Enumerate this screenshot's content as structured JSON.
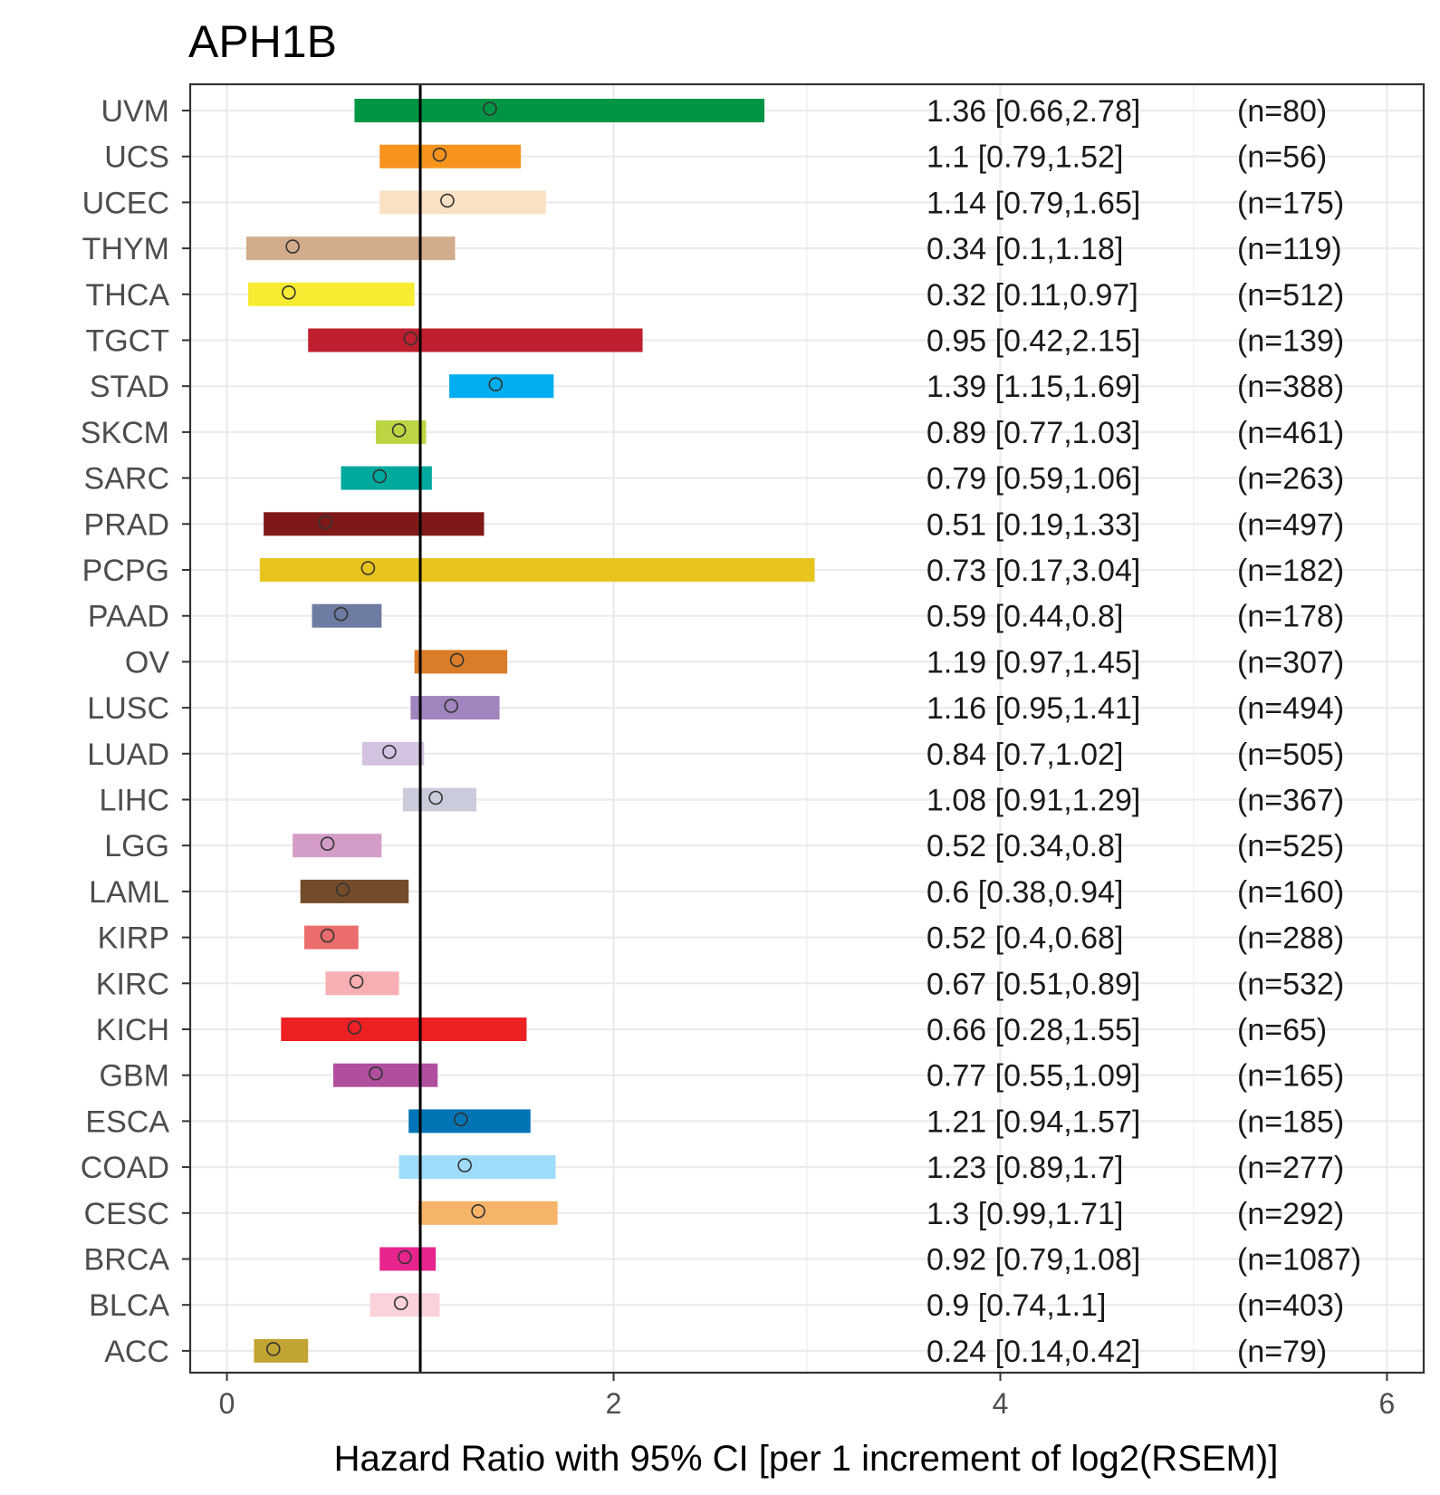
{
  "chart_data": {
    "type": "forest",
    "title": "APH1B",
    "xlabel": "Hazard Ratio with 95% CI [per 1 increment of log2(RSEM)]",
    "ylabel": "",
    "xlim": [
      -0.19,
      6.19
    ],
    "xticks": [
      0,
      2,
      4,
      6
    ],
    "reference_line": 1,
    "grid": true,
    "rows": [
      {
        "label": "UVM",
        "hr": 1.36,
        "lo": 0.66,
        "hi": 2.78,
        "text": "1.36 [0.66,2.78]",
        "n": "(n=80)",
        "color": "#009444"
      },
      {
        "label": "UCS",
        "hr": 1.1,
        "lo": 0.79,
        "hi": 1.52,
        "text": "1.1 [0.79,1.52]",
        "n": "(n=56)",
        "color": "#F7941D"
      },
      {
        "label": "UCEC",
        "hr": 1.14,
        "lo": 0.79,
        "hi": 1.65,
        "text": "1.14 [0.79,1.65]",
        "n": "(n=175)",
        "color": "#FAE1C4"
      },
      {
        "label": "THYM",
        "hr": 0.34,
        "lo": 0.1,
        "hi": 1.18,
        "text": "0.34 [0.1,1.18]",
        "n": "(n=119)",
        "color": "#D2AC8B"
      },
      {
        "label": "THCA",
        "hr": 0.32,
        "lo": 0.11,
        "hi": 0.97,
        "text": "0.32 [0.11,0.97]",
        "n": "(n=512)",
        "color": "#F8EC32"
      },
      {
        "label": "TGCT",
        "hr": 0.95,
        "lo": 0.42,
        "hi": 2.15,
        "text": "0.95 [0.42,2.15]",
        "n": "(n=139)",
        "color": "#BE1E2D"
      },
      {
        "label": "STAD",
        "hr": 1.39,
        "lo": 1.15,
        "hi": 1.69,
        "text": "1.39 [1.15,1.69]",
        "n": "(n=388)",
        "color": "#00AEEF"
      },
      {
        "label": "SKCM",
        "hr": 0.89,
        "lo": 0.77,
        "hi": 1.03,
        "text": "0.89 [0.77,1.03]",
        "n": "(n=461)",
        "color": "#BBD642"
      },
      {
        "label": "SARC",
        "hr": 0.79,
        "lo": 0.59,
        "hi": 1.06,
        "text": "0.79 [0.59,1.06]",
        "n": "(n=263)",
        "color": "#00A99D"
      },
      {
        "label": "PRAD",
        "hr": 0.51,
        "lo": 0.19,
        "hi": 1.33,
        "text": "0.51 [0.19,1.33]",
        "n": "(n=497)",
        "color": "#7E1918"
      },
      {
        "label": "PCPG",
        "hr": 0.73,
        "lo": 0.17,
        "hi": 3.04,
        "text": "0.73 [0.17,3.04]",
        "n": "(n=182)",
        "color": "#E8C51D"
      },
      {
        "label": "PAAD",
        "hr": 0.59,
        "lo": 0.44,
        "hi": 0.8,
        "text": "0.59 [0.44,0.8]",
        "n": "(n=178)",
        "color": "#6E7BA2"
      },
      {
        "label": "OV",
        "hr": 1.19,
        "lo": 0.97,
        "hi": 1.45,
        "text": "1.19 [0.97,1.45]",
        "n": "(n=307)",
        "color": "#DA7C28"
      },
      {
        "label": "LUSC",
        "hr": 1.16,
        "lo": 0.95,
        "hi": 1.41,
        "text": "1.16 [0.95,1.41]",
        "n": "(n=494)",
        "color": "#A084BD"
      },
      {
        "label": "LUAD",
        "hr": 0.84,
        "lo": 0.7,
        "hi": 1.02,
        "text": "0.84 [0.7,1.02]",
        "n": "(n=505)",
        "color": "#D3C3E0"
      },
      {
        "label": "LIHC",
        "hr": 1.08,
        "lo": 0.91,
        "hi": 1.29,
        "text": "1.08 [0.91,1.29]",
        "n": "(n=367)",
        "color": "#CACCDB"
      },
      {
        "label": "LGG",
        "hr": 0.52,
        "lo": 0.34,
        "hi": 0.8,
        "text": "0.52 [0.34,0.8]",
        "n": "(n=525)",
        "color": "#D49DC7"
      },
      {
        "label": "LAML",
        "hr": 0.6,
        "lo": 0.38,
        "hi": 0.94,
        "text": "0.6 [0.38,0.94]",
        "n": "(n=160)",
        "color": "#754C29"
      },
      {
        "label": "KIRP",
        "hr": 0.52,
        "lo": 0.4,
        "hi": 0.68,
        "text": "0.52 [0.4,0.68]",
        "n": "(n=288)",
        "color": "#EA6C6C"
      },
      {
        "label": "KIRC",
        "hr": 0.67,
        "lo": 0.51,
        "hi": 0.89,
        "text": "0.67 [0.51,0.89]",
        "n": "(n=532)",
        "color": "#F8AFB3"
      },
      {
        "label": "KICH",
        "hr": 0.66,
        "lo": 0.28,
        "hi": 1.55,
        "text": "0.66 [0.28,1.55]",
        "n": "(n=65)",
        "color": "#ED2024"
      },
      {
        "label": "GBM",
        "hr": 0.77,
        "lo": 0.55,
        "hi": 1.09,
        "text": "0.77 [0.55,1.09]",
        "n": "(n=165)",
        "color": "#B14F9F"
      },
      {
        "label": "ESCA",
        "hr": 1.21,
        "lo": 0.94,
        "hi": 1.57,
        "text": "1.21 [0.94,1.57]",
        "n": "(n=185)",
        "color": "#0074B4"
      },
      {
        "label": "COAD",
        "hr": 1.23,
        "lo": 0.89,
        "hi": 1.7,
        "text": "1.23 [0.89,1.7]",
        "n": "(n=277)",
        "color": "#9EDCF9"
      },
      {
        "label": "CESC",
        "hr": 1.3,
        "lo": 0.99,
        "hi": 1.71,
        "text": "1.3 [0.99,1.71]",
        "n": "(n=292)",
        "color": "#F5B468"
      },
      {
        "label": "BRCA",
        "hr": 0.92,
        "lo": 0.79,
        "hi": 1.08,
        "text": "0.92 [0.79,1.08]",
        "n": "(n=1087)",
        "color": "#E7248E"
      },
      {
        "label": "BLCA",
        "hr": 0.9,
        "lo": 0.74,
        "hi": 1.1,
        "text": "0.9 [0.74,1.1]",
        "n": "(n=403)",
        "color": "#FAD2D9"
      },
      {
        "label": "ACC",
        "hr": 0.24,
        "lo": 0.14,
        "hi": 0.42,
        "text": "0.24 [0.14,0.42]",
        "n": "(n=79)",
        "color": "#C1A432"
      }
    ]
  }
}
